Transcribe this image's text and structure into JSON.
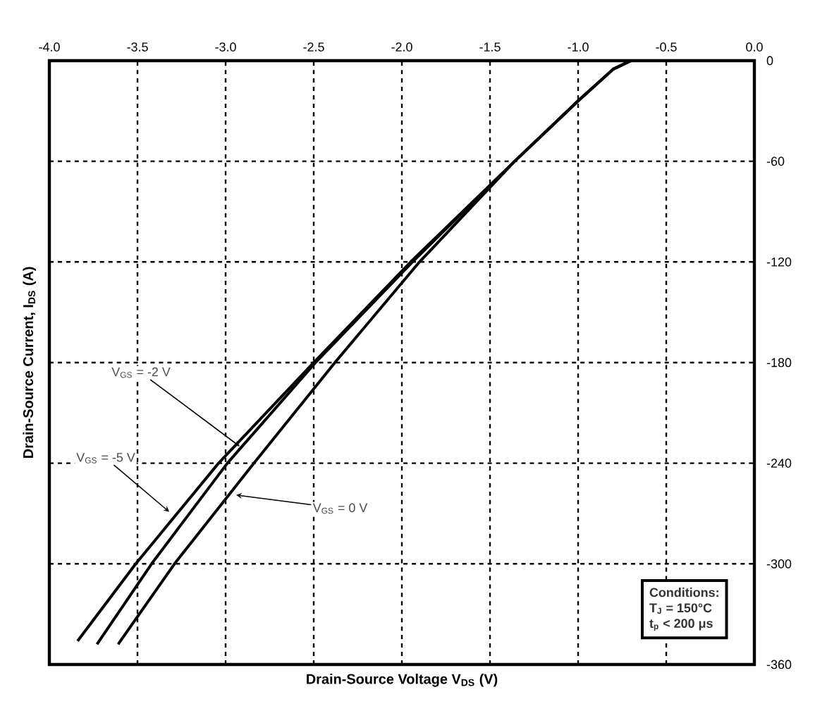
{
  "chart_data": {
    "type": "line",
    "xlabel": "Drain-Source Voltage V$_{DS}$ (V)",
    "ylabel": "Drain-Source Current, I$_{DS}$ (A)",
    "xlim": [
      -4,
      0
    ],
    "ylim": [
      -360,
      0
    ],
    "xticks": [
      {
        "value": -4,
        "label": "-4.0"
      },
      {
        "value": -3.5,
        "label": "-3.5"
      },
      {
        "value": -3,
        "label": "-3.0"
      },
      {
        "value": -2.5,
        "label": "-2.5"
      },
      {
        "value": -2,
        "label": "-2.0"
      },
      {
        "value": -1.5,
        "label": "-1.5"
      },
      {
        "value": -1,
        "label": "-1.0"
      },
      {
        "value": -0.5,
        "label": "-0.5"
      },
      {
        "value": 0,
        "label": "0.0"
      }
    ],
    "yticks": [
      0,
      -60,
      -120,
      -180,
      -240,
      -300,
      -360
    ],
    "grid": true,
    "line_style": "solid",
    "marker": "none",
    "series": [
      {
        "color": "#000000",
        "x": [
          -0.55,
          -0.7,
          -0.8,
          -1.0,
          -1.36,
          -1.95,
          -2.5,
          -3.04,
          -3.51,
          -3.84
        ],
        "values": [
          0,
          0,
          -5,
          -24,
          -60,
          -120,
          -180,
          -240,
          -300,
          -346
        ]
      },
      {
        "color": "#000000",
        "x": [
          -0.55,
          -0.7,
          -0.8,
          -1.0,
          -1.36,
          -1.94,
          -2.49,
          -2.99,
          -3.42,
          -3.73
        ],
        "values": [
          0,
          0,
          -5,
          -24,
          -60,
          -120,
          -180,
          -240,
          -300,
          -348
        ]
      },
      {
        "color": "#000000",
        "x": [
          -0.55,
          -0.7,
          -0.8,
          -1.0,
          -1.36,
          -1.9,
          -2.38,
          -2.84,
          -3.29,
          -3.61
        ],
        "values": [
          0,
          0,
          -5,
          -24,
          -60,
          -120,
          -180,
          -240,
          -300,
          -348
        ]
      }
    ],
    "annotations": [
      {
        "text": "V$_{GS}$ = -2 V",
        "x": -2.92,
        "y": -230
      },
      {
        "text": "V$_{GS}$ = -5 V",
        "x": -3.32,
        "y": -269
      },
      {
        "text": "V$_{GS}$ = 0 V",
        "x": -2.94,
        "y": -259
      },
      "Conditions:",
      "T$_{J}$ = 150°C",
      "t$_{p}$ < 200 μs"
    ]
  }
}
